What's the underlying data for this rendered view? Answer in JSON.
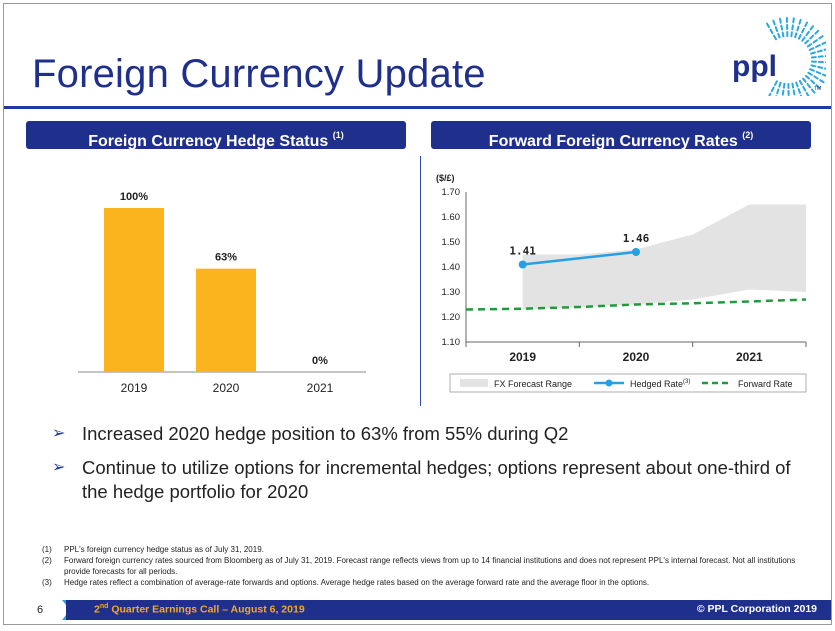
{
  "title": "Foreign Currency Update",
  "logo_text": "ppl",
  "logo_tm": "TM",
  "left_panel": {
    "header": "Foreign Currency Hedge Status",
    "header_ref": "(1)"
  },
  "right_panel": {
    "header": "Forward Foreign Currency Rates",
    "header_ref": "(2)"
  },
  "colors": {
    "brand_blue": "#1f2f8c",
    "bar_gold": "#fbb41e",
    "hedged_blue": "#25a0e6",
    "forward_green": "#1f9a3e",
    "range_gray": "#e3e3e3"
  },
  "chart_data": [
    {
      "type": "bar",
      "categories": [
        "2019",
        "2020",
        "2021"
      ],
      "values": [
        100,
        63,
        0
      ],
      "value_labels": [
        "100%",
        "63%",
        "0%"
      ],
      "ylim": [
        0,
        100
      ],
      "title": "",
      "xlabel": "",
      "ylabel": ""
    },
    {
      "type": "line",
      "ylabel": "($/£)",
      "ylim": [
        1.1,
        1.7
      ],
      "yticks": [
        "1.70",
        "1.60",
        "1.50",
        "1.40",
        "1.30",
        "1.20",
        "1.10"
      ],
      "categories": [
        "2019",
        "2020",
        "2021"
      ],
      "fx_range": {
        "name": "FX Forecast Range",
        "x": [
          0,
          0.5,
          1.0,
          1.5,
          2.0,
          2.5
        ],
        "low": [
          1.23,
          1.24,
          1.25,
          1.27,
          1.31,
          1.3
        ],
        "high": [
          1.45,
          1.45,
          1.47,
          1.53,
          1.65,
          1.65
        ]
      },
      "hedged_rate": {
        "name": "Hedged Rate",
        "name_ref": "(3)",
        "x": [
          0,
          1
        ],
        "values": [
          1.41,
          1.46
        ],
        "labels": [
          "1.41",
          "1.46"
        ]
      },
      "forward_rate": {
        "name": "Forward Rate",
        "x": [
          -0.5,
          0,
          0.5,
          1.0,
          1.5,
          2.0,
          2.5
        ],
        "values": [
          1.23,
          1.233,
          1.24,
          1.25,
          1.255,
          1.262,
          1.27
        ]
      },
      "legend_placement": "bottom"
    }
  ],
  "bullets": [
    "Increased 2020 hedge position to 63% from 55% during Q2",
    "Continue to utilize options for incremental hedges; options represent about one-third of the hedge portfolio for 2020"
  ],
  "bullet_glyph": "➢",
  "notes": [
    {
      "num": "(1)",
      "text": "PPL's foreign currency hedge status as of July 31, 2019."
    },
    {
      "num": "(2)",
      "text": "Forward foreign currency rates sourced from Bloomberg as of July 31, 2019. Forecast range reflects views from up to 14 financial institutions and does not represent PPL's internal forecast. Not all institutions provide forecasts for all periods."
    },
    {
      "num": "(3)",
      "text": "Hedge rates reflect a combination of average-rate forwards and options. Average hedge rates based on the average forward rate and the average floor in the options."
    }
  ],
  "footer": {
    "page_number": "6",
    "event_prefix": "2",
    "event_sup": "nd",
    "event_suffix": " Quarter Earnings Call – August 6, 2019",
    "copyright": "© PPL Corporation 2019"
  }
}
